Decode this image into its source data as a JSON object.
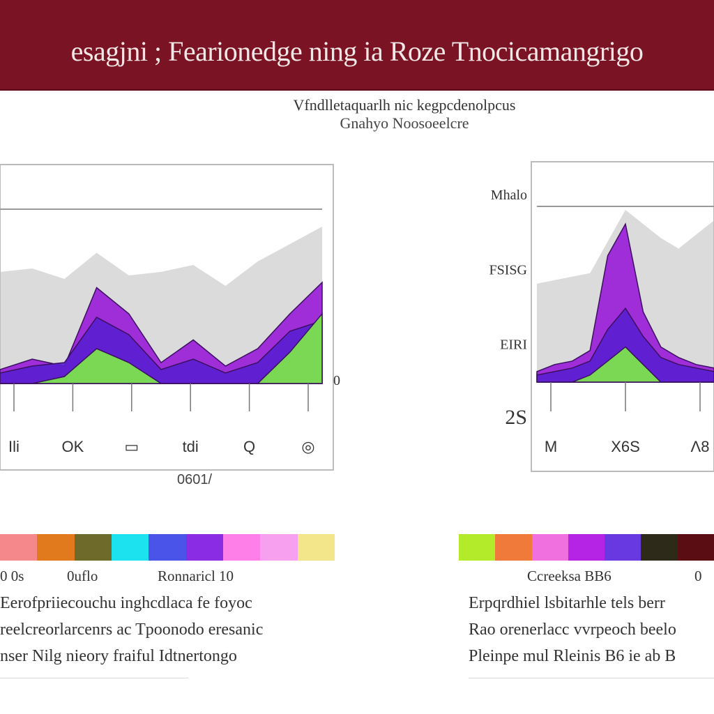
{
  "header": {
    "title": "esagjni ; Fearionedge ning ia Roze Tnocicamangrigo"
  },
  "subtitle": {
    "line1": "Vfndlletaquarlh nic kegpcdenolpcus",
    "line2": "Gnahyo Noosoeelcre"
  },
  "colors": {
    "banner": "#7a1424",
    "purple": "#9a1ed8",
    "violet": "#5a1fd0",
    "green": "#7de84a",
    "gray": "#bdbdbd"
  },
  "chart_data": [
    {
      "type": "area",
      "name": "left",
      "x_ticks": [
        "Ili",
        "OK",
        "▭",
        "tdi",
        "Q",
        "◎"
      ],
      "y_ticks": [
        "0"
      ],
      "xlabel": "0601/",
      "series": [
        {
          "role": "background",
          "x": [
            0,
            1,
            2,
            3,
            4,
            5,
            6,
            7,
            8,
            9,
            10
          ],
          "values": [
            64,
            66,
            60,
            75,
            62,
            64,
            68,
            56,
            70,
            80,
            90
          ]
        },
        {
          "role": "purple",
          "x": [
            0,
            1,
            2,
            3,
            4,
            5,
            6,
            7,
            8,
            9,
            10
          ],
          "values": [
            8,
            14,
            10,
            55,
            40,
            12,
            25,
            10,
            20,
            40,
            58
          ]
        },
        {
          "role": "violet",
          "x": [
            0,
            1,
            2,
            3,
            4,
            5,
            6,
            7,
            8,
            9,
            10
          ],
          "values": [
            6,
            10,
            12,
            38,
            28,
            8,
            14,
            6,
            12,
            30,
            36
          ]
        },
        {
          "role": "green",
          "x": [
            0,
            1,
            2,
            3,
            4,
            5,
            6,
            7,
            8,
            9,
            10
          ],
          "values": [
            0,
            0,
            4,
            20,
            12,
            0,
            0,
            0,
            0,
            18,
            40
          ]
        }
      ]
    },
    {
      "type": "area",
      "name": "right",
      "x_ticks": [
        "M",
        "X6S",
        "Λ8"
      ],
      "y_ticks": [
        "Mhalo",
        "FSISG",
        "EIRI",
        "2S"
      ],
      "xlabel": "",
      "series": [
        {
          "role": "background",
          "x": [
            0,
            1,
            2,
            3,
            4,
            5,
            6,
            7,
            8,
            9,
            10
          ],
          "values": [
            56,
            58,
            60,
            62,
            80,
            98,
            90,
            82,
            76,
            84,
            92
          ]
        },
        {
          "role": "purple",
          "x": [
            0,
            1,
            2,
            3,
            4,
            5,
            6,
            7,
            8,
            9,
            10
          ],
          "values": [
            6,
            10,
            12,
            18,
            72,
            90,
            40,
            20,
            14,
            10,
            8
          ]
        },
        {
          "role": "violet",
          "x": [
            0,
            1,
            2,
            3,
            4,
            5,
            6,
            7,
            8,
            9,
            10
          ],
          "values": [
            4,
            6,
            8,
            12,
            30,
            42,
            26,
            14,
            10,
            8,
            6
          ]
        },
        {
          "role": "green",
          "x": [
            0,
            1,
            2,
            3,
            4,
            5,
            6,
            7,
            8,
            9,
            10
          ],
          "values": [
            0,
            0,
            0,
            4,
            12,
            20,
            10,
            0,
            0,
            0,
            0
          ]
        }
      ]
    }
  ],
  "left_legend": {
    "swatches": [
      "#f5888a",
      "#e07a1c",
      "#6e6a2a",
      "#1ce2f0",
      "#4a54e8",
      "#8a2ce4",
      "#ff7fe8",
      "#f8a0f0",
      "#f2e58a"
    ],
    "labels": [
      "0 0s",
      "0uflo",
      "Ronnaricl 10"
    ]
  },
  "right_legend": {
    "swatches": [
      "#b3ea2a",
      "#f07a3a",
      "#f070e0",
      "#b524e4",
      "#6838e0",
      "#2e2a1a",
      "#5a0e14"
    ],
    "labels": [
      "Ccreeksa BB6",
      "0"
    ]
  },
  "left_caption": [
    "Eerofpriiecouchu inghcdlaca fe foyoc",
    "reelcreorlarcenrs ac Tpoonodo eresanic",
    "nser Nilg nieory fraiful Idtnertongo"
  ],
  "right_caption": [
    "Erpqrdhiel lsbitarhle tels berr",
    "Rao orenerlacc vvrpeoch beelo",
    "Pleinpe mul Rleinis B6 ie ab B"
  ]
}
